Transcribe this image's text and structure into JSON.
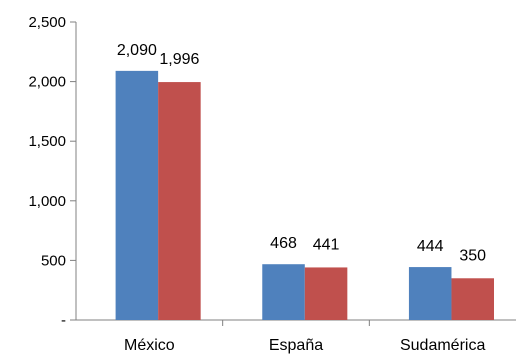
{
  "chart_data": {
    "type": "bar",
    "categories": [
      "México",
      "España",
      "Sudamérica"
    ],
    "series": [
      {
        "values": [
          2090,
          468,
          444
        ],
        "color": "#4F81BD"
      },
      {
        "values": [
          1996,
          441,
          350
        ],
        "color": "#C0504D"
      }
    ],
    "data_labels": [
      [
        "2,090",
        "468",
        "444"
      ],
      [
        "1,996",
        "441",
        "350"
      ]
    ],
    "ylim": [
      0,
      2500
    ],
    "yticks": [
      0,
      500,
      1000,
      1500,
      2000,
      2500
    ],
    "ytick_labels": [
      "-",
      "500",
      "1,000",
      "1,500",
      "2,000",
      "2,500"
    ],
    "grid": false,
    "legend": "none"
  }
}
